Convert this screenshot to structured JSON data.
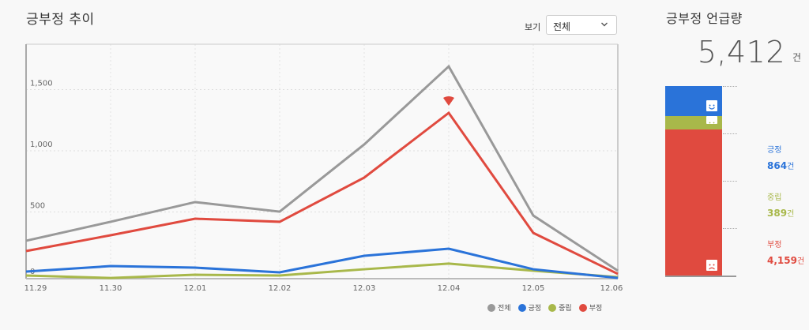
{
  "header": {
    "title": "긍부정 추이",
    "view_label": "보기",
    "view_select": {
      "value": "전체",
      "icon": "chevron-down-icon"
    }
  },
  "legend": [
    {
      "label": "전체",
      "color": "#999999"
    },
    {
      "label": "긍정",
      "color": "#2a73d9"
    },
    {
      "label": "중립",
      "color": "#a8b84a"
    },
    {
      "label": "부정",
      "color": "#e04a3f"
    }
  ],
  "side": {
    "title": "긍부정 언급량",
    "total": "5,412",
    "total_unit": "건",
    "stats": [
      {
        "label": "긍정",
        "value": "864",
        "unit": "건",
        "color": "#2a73d9"
      },
      {
        "label": "중립",
        "value": "389",
        "unit": "건",
        "color": "#a8b84a"
      },
      {
        "label": "부정",
        "value": "4,159",
        "unit": "건",
        "color": "#e04a3f"
      }
    ],
    "face_icons": [
      "smile-face-icon",
      "neutral-face-icon",
      "sad-face-icon"
    ]
  },
  "chart_data": [
    {
      "type": "line",
      "title": "긍부정 추이",
      "xlabel": "",
      "ylabel": "",
      "categories": [
        "11.29",
        "11.30",
        "12.01",
        "12.02",
        "12.03",
        "12.04",
        "12.05",
        "12.06"
      ],
      "y_ticks": [
        "0",
        "500",
        "1,000",
        "1,500"
      ],
      "ylim": [
        0,
        1900
      ],
      "grid": true,
      "legend_position": "bottom-right",
      "series": [
        {
          "name": "전체",
          "color": "#999999",
          "values": [
            310,
            465,
            626,
            548,
            1097,
            1735,
            516,
            65
          ]
        },
        {
          "name": "긍정",
          "color": "#2a73d9",
          "values": [
            58,
            103,
            90,
            52,
            187,
            245,
            77,
            6
          ]
        },
        {
          "name": "중립",
          "color": "#a8b84a",
          "values": [
            26,
            6,
            32,
            26,
            77,
            123,
            65,
            13
          ]
        },
        {
          "name": "부정",
          "color": "#e04a3f",
          "values": [
            226,
            355,
            490,
            465,
            826,
            1355,
            374,
            39
          ]
        }
      ],
      "annotations": [
        {
          "type": "marker",
          "series": "부정",
          "category": "12.04",
          "shape": "down-triangle"
        }
      ]
    },
    {
      "type": "bar",
      "title": "긍부정 언급량",
      "stacked": true,
      "categories": [
        "긍부정 언급량"
      ],
      "series": [
        {
          "name": "긍정",
          "color": "#2a73d9",
          "values": [
            864
          ]
        },
        {
          "name": "중립",
          "color": "#a8b84a",
          "values": [
            389
          ]
        },
        {
          "name": "부정",
          "color": "#e04a3f",
          "values": [
            4159
          ]
        }
      ],
      "total": 5412
    }
  ]
}
